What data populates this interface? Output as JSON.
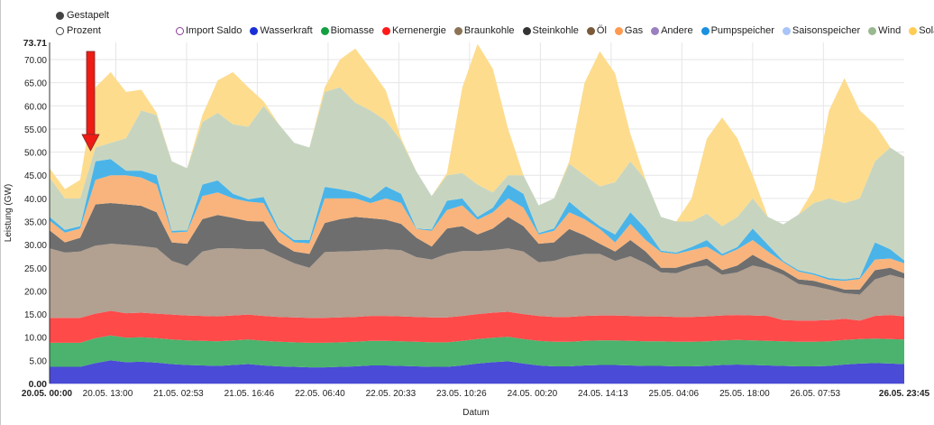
{
  "modes": {
    "stacked": "Gestapelt",
    "percent": "Prozent",
    "selected": "stacked"
  },
  "legend": {
    "items": [
      {
        "label": "Import Saldo",
        "color": "#8e3a9e",
        "hollow": true
      },
      {
        "label": "Wasserkraft",
        "color": "#1a2fd6"
      },
      {
        "label": "Biomasse",
        "color": "#14a040"
      },
      {
        "label": "Kernenergie",
        "color": "#ff1a1a"
      },
      {
        "label": "Braunkohle",
        "color": "#8b7355"
      },
      {
        "label": "Steinkohle",
        "color": "#333333"
      },
      {
        "label": "Öl",
        "color": "#7a5a3a"
      },
      {
        "label": "Gas",
        "color": "#ff9a50"
      },
      {
        "label": "Andere",
        "color": "#9a80c0"
      },
      {
        "label": "Pumpspeicher",
        "color": "#1a90e0"
      },
      {
        "label": "Saisonspeicher",
        "color": "#a8c4f8"
      },
      {
        "label": "Wind",
        "color": "#9ab890"
      },
      {
        "label": "Solar",
        "color": "#ffcc55"
      }
    ]
  },
  "chart_data": {
    "type": "area",
    "stacked": true,
    "xlabel": "Datum",
    "ylabel": "Leistung (GW)",
    "ylim": [
      0,
      73.71
    ],
    "y_ticks": [
      "0.00",
      "5.00",
      "10.00",
      "15.00",
      "20.00",
      "25.00",
      "30.00",
      "35.00",
      "40.00",
      "45.00",
      "50.00",
      "55.00",
      "60.00",
      "65.00",
      "70.00",
      "73.71"
    ],
    "x_ticks": [
      "20.05. 00:00",
      "20.05. 13:00",
      "21.05. 02:53",
      "21.05. 16:46",
      "22.05. 06:40",
      "22.05. 20:33",
      "23.05. 10:26",
      "24.05. 00:20",
      "24.05. 14:13",
      "25.05. 04:06",
      "25.05. 18:00",
      "26.05. 07:53",
      "26.05. 23:45"
    ],
    "grid": true,
    "legend_position": "top",
    "x": [
      "20.05. 00:00",
      "20.05. 03:00",
      "20.05. 06:00",
      "20.05. 09:00",
      "20.05. 12:00",
      "20.05. 15:00",
      "20.05. 18:00",
      "20.05. 21:00",
      "21.05. 00:00",
      "21.05. 03:00",
      "21.05. 06:00",
      "21.05. 09:00",
      "21.05. 12:00",
      "21.05. 15:00",
      "21.05. 18:00",
      "21.05. 21:00",
      "22.05. 00:00",
      "22.05. 03:00",
      "22.05. 06:00",
      "22.05. 09:00",
      "22.05. 12:00",
      "22.05. 15:00",
      "22.05. 18:00",
      "22.05. 21:00",
      "23.05. 00:00",
      "23.05. 03:00",
      "23.05. 06:00",
      "23.05. 09:00",
      "23.05. 12:00",
      "23.05. 15:00",
      "23.05. 18:00",
      "23.05. 21:00",
      "24.05. 00:00",
      "24.05. 03:00",
      "24.05. 06:00",
      "24.05. 09:00",
      "24.05. 12:00",
      "24.05. 15:00",
      "24.05. 18:00",
      "24.05. 21:00",
      "25.05. 00:00",
      "25.05. 03:00",
      "25.05. 06:00",
      "25.05. 09:00",
      "25.05. 12:00",
      "25.05. 15:00",
      "25.05. 18:00",
      "25.05. 21:00",
      "26.05. 00:00",
      "26.05. 03:00",
      "26.05. 06:00",
      "26.05. 09:00",
      "26.05. 12:00",
      "26.05. 15:00",
      "26.05. 18:00",
      "26.05. 21:00",
      "26.05. 23:45"
    ],
    "series": [
      {
        "name": "Wasserkraft",
        "color": "#4a4bd6",
        "values": [
          3.6,
          3.6,
          3.6,
          4.4,
          5.0,
          4.6,
          4.7,
          4.5,
          4.2,
          4.0,
          3.9,
          3.8,
          4.0,
          4.2,
          3.9,
          3.7,
          3.6,
          3.5,
          3.5,
          3.6,
          3.7,
          3.9,
          3.9,
          3.8,
          3.7,
          3.6,
          3.6,
          3.9,
          4.3,
          4.6,
          4.8,
          4.3,
          3.9,
          3.7,
          3.7,
          3.9,
          4.0,
          4.0,
          3.9,
          3.8,
          3.8,
          3.7,
          3.7,
          3.8,
          4.0,
          4.1,
          4.0,
          3.9,
          3.8,
          3.7,
          3.7,
          3.8,
          4.1,
          4.3,
          4.4,
          4.3,
          4.2
        ]
      },
      {
        "name": "Biomasse",
        "color": "#4bb36e",
        "values": [
          5.2,
          5.2,
          5.2,
          5.4,
          5.4,
          5.3,
          5.3,
          5.3,
          5.3,
          5.3,
          5.3,
          5.3,
          5.3,
          5.3,
          5.3,
          5.3,
          5.3,
          5.3,
          5.3,
          5.3,
          5.3,
          5.3,
          5.3,
          5.3,
          5.3,
          5.3,
          5.3,
          5.3,
          5.3,
          5.3,
          5.3,
          5.3,
          5.3,
          5.3,
          5.3,
          5.3,
          5.3,
          5.3,
          5.3,
          5.3,
          5.3,
          5.3,
          5.3,
          5.3,
          5.3,
          5.3,
          5.3,
          5.3,
          5.3,
          5.3,
          5.3,
          5.3,
          5.3,
          5.3,
          5.3,
          5.3,
          5.3
        ]
      },
      {
        "name": "Kernenergie",
        "color": "#ff4a4a",
        "values": [
          5.4,
          5.4,
          5.4,
          5.3,
          5.3,
          5.3,
          5.3,
          5.3,
          5.4,
          5.4,
          5.4,
          5.4,
          5.4,
          5.4,
          5.4,
          5.4,
          5.4,
          5.4,
          5.4,
          5.4,
          5.4,
          5.4,
          5.4,
          5.4,
          5.4,
          5.4,
          5.4,
          5.4,
          5.4,
          5.4,
          5.4,
          5.4,
          5.4,
          5.4,
          5.4,
          5.4,
          5.4,
          5.4,
          5.4,
          5.4,
          5.4,
          5.4,
          5.4,
          5.4,
          5.4,
          5.4,
          5.4,
          5.4,
          4.6,
          4.6,
          4.6,
          4.6,
          4.6,
          4.0,
          4.9,
          5.2,
          5.0
        ]
      },
      {
        "name": "Braunkohle",
        "color": "#b2a090",
        "values": [
          15.0,
          14.1,
          14.3,
          14.7,
          14.5,
          14.8,
          14.4,
          14.2,
          11.6,
          10.7,
          13.9,
          14.7,
          14.5,
          14.1,
          14.4,
          13.1,
          11.7,
          10.8,
          14.2,
          14.2,
          14.2,
          14.2,
          14.4,
          14.3,
          12.9,
          12.5,
          13.7,
          14.0,
          13.6,
          13.5,
          13.7,
          13.5,
          11.6,
          12.1,
          13.1,
          13.4,
          13.3,
          11.8,
          12.9,
          11.5,
          9.5,
          9.4,
          10.6,
          11.0,
          8.8,
          9.2,
          10.8,
          10.2,
          9.8,
          7.9,
          7.4,
          6.6,
          5.5,
          5.6,
          7.9,
          8.7,
          8.2
        ]
      },
      {
        "name": "Steinkohle",
        "color": "#6e6e6e",
        "values": [
          3.9,
          2.2,
          3.0,
          8.9,
          8.8,
          8.7,
          8.7,
          7.7,
          4.0,
          4.8,
          7.0,
          7.2,
          6.6,
          6.1,
          6.0,
          3.0,
          2.5,
          3.0,
          6.3,
          7.0,
          7.4,
          6.9,
          6.4,
          5.7,
          4.2,
          2.8,
          5.5,
          5.4,
          3.6,
          4.7,
          6.8,
          5.5,
          4.0,
          4.0,
          5.9,
          4.0,
          2.2,
          2.0,
          3.5,
          2.5,
          1.0,
          1.2,
          1.0,
          1.5,
          1.0,
          1.5,
          2.3,
          1.2,
          1.0,
          1.0,
          1.2,
          1.0,
          0.8,
          1.1,
          2.0,
          1.5,
          1.1
        ]
      },
      {
        "name": "Gas",
        "color": "#f8b47c",
        "values": [
          2.1,
          2.1,
          2.0,
          5.3,
          6.0,
          6.3,
          6.1,
          6.0,
          2.1,
          2.6,
          5.0,
          4.9,
          4.2,
          4.2,
          4.0,
          2.5,
          2.0,
          2.3,
          5.3,
          4.5,
          4.0,
          3.3,
          4.6,
          4.5,
          1.9,
          3.4,
          4.0,
          4.5,
          3.2,
          3.5,
          4.0,
          4.0,
          2.0,
          2.5,
          3.6,
          3.5,
          3.2,
          2.0,
          3.5,
          2.5,
          3.4,
          3.0,
          2.8,
          2.6,
          3.1,
          3.5,
          3.2,
          2.5,
          1.7,
          1.7,
          1.3,
          1.1,
          1.9,
          2.3,
          2.3,
          2.0,
          2.2
        ]
      },
      {
        "name": "Pumpspeicher",
        "color": "#4ab4e8",
        "values": [
          0.8,
          0.6,
          0.5,
          4.0,
          3.5,
          1.0,
          1.5,
          2.0,
          0.4,
          0.3,
          2.5,
          2.6,
          1.0,
          0.5,
          1.3,
          0.5,
          0.5,
          0.7,
          2.5,
          2.0,
          1.3,
          1.0,
          2.6,
          2.0,
          0.1,
          0.3,
          2.0,
          1.5,
          0.6,
          1.0,
          3.0,
          3.0,
          0.3,
          0.5,
          2.3,
          1.0,
          0.6,
          1.7,
          2.5,
          2.5,
          0.3,
          0.3,
          0.7,
          1.4,
          0.4,
          0.5,
          2.5,
          1.5,
          0.3,
          0.3,
          0.3,
          0.4,
          0.3,
          0.3,
          3.7,
          2.0,
          0.6
        ]
      },
      {
        "name": "Wind",
        "color": "#c7d5c0",
        "values": [
          8.5,
          6.8,
          6.0,
          3.0,
          3.5,
          7.0,
          13.0,
          13.0,
          15.0,
          13.4,
          13.5,
          14.6,
          15.0,
          15.7,
          19.7,
          22.5,
          21.0,
          20.0,
          20.5,
          22.0,
          19.4,
          19.0,
          14.2,
          11.5,
          12.3,
          7.2,
          5.5,
          5.5,
          7.0,
          3.3,
          2.0,
          4.0,
          6.0,
          6.5,
          8.2,
          8.5,
          8.6,
          11.3,
          11.0,
          10.5,
          7.3,
          6.7,
          5.5,
          5.7,
          6.0,
          6.5,
          6.5,
          6.0,
          7.9,
          12.0,
          15.2,
          17.2,
          16.5,
          17.1,
          17.5,
          22.0,
          22.4
        ]
      },
      {
        "name": "Solar",
        "color": "#fddc8e",
        "values": [
          2.0,
          2.0,
          4.0,
          13.0,
          15.3,
          10.0,
          4.5,
          0.5,
          0,
          0,
          1.5,
          7.0,
          11.3,
          8.5,
          1.0,
          0,
          0,
          0,
          1.0,
          6.0,
          11.7,
          9.0,
          6.5,
          0.5,
          0,
          0,
          0.5,
          18.5,
          30.4,
          26.7,
          10.0,
          0,
          0,
          0,
          0.5,
          20.0,
          29.2,
          23.5,
          6.0,
          0,
          0,
          0,
          5.0,
          16.2,
          23.5,
          17.0,
          5.0,
          0,
          0,
          0,
          3.0,
          19.0,
          27.0,
          19.0,
          8.0,
          0,
          0
        ]
      }
    ]
  }
}
